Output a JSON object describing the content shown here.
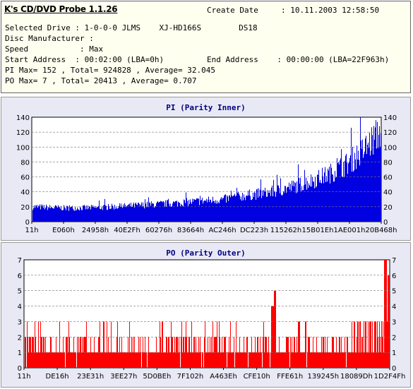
{
  "header": {
    "title": "K's CD/DVD Probe 1.1.26",
    "create_date_label": "Create Date",
    "create_date_value": ": 10.11.2003 12:58:50",
    "drive_line": "Selected Drive : 1-0-0-0 JLMS    XJ-HD166S        DS18",
    "manufacturer_line": "Disc Manufacturer :",
    "speed_line": "Speed           : Max",
    "start_line": "Start Address  : 00:02:00 (LBA=0h)",
    "end_line": "End Address    : 00:00:00 (LBA=22F963h)",
    "pi_line": "PI Max= 152 , Total= 924828 , Average= 32.045",
    "po_line": "PO Max= 7 , Total= 20413 , Average= 0.707"
  },
  "colors": {
    "pi": "#0000e0",
    "po": "#ff0000",
    "panel_bg": "#e9e9f6",
    "title": "#000080"
  },
  "chart_data": [
    {
      "type": "bar",
      "title": "PI (Parity Inner)",
      "ylim": [
        0,
        140
      ],
      "yticks": [
        0,
        20,
        40,
        60,
        80,
        100,
        120,
        140
      ],
      "xtick_labels": [
        "11h",
        "E060h",
        "24958h",
        "40E2Fh",
        "60276h",
        "83664h",
        "AC246h",
        "DC223h",
        "115262h",
        "15B01Eh",
        "1AE001h",
        "20B468h"
      ],
      "grid": true,
      "max": 152,
      "total": 924828,
      "average": 32.045,
      "envelope": [
        [
          0,
          22
        ],
        [
          0.05,
          21
        ],
        [
          0.1,
          20
        ],
        [
          0.2,
          21
        ],
        [
          0.3,
          24
        ],
        [
          0.4,
          27
        ],
        [
          0.5,
          31
        ],
        [
          0.55,
          33
        ],
        [
          0.6,
          38
        ],
        [
          0.65,
          41
        ],
        [
          0.7,
          45
        ],
        [
          0.75,
          52
        ],
        [
          0.8,
          60
        ],
        [
          0.85,
          70
        ],
        [
          0.9,
          84
        ],
        [
          0.95,
          105
        ],
        [
          0.98,
          122
        ],
        [
          1.0,
          135
        ]
      ]
    },
    {
      "type": "bar",
      "title": "PO (Parity Outer)",
      "ylim": [
        0,
        7
      ],
      "yticks": [
        0,
        1,
        2,
        3,
        4,
        5,
        6,
        7
      ],
      "xtick_labels": [
        "11h",
        "DE16h",
        "23E31h",
        "3EE27h",
        "5D0BEh",
        "7F102h",
        "A463Eh",
        "CFE10h",
        "FFE61h",
        "139245h",
        "18089Dh",
        "1D2F4Fh"
      ],
      "grid": true,
      "max": 7,
      "total": 20413,
      "average": 0.707,
      "spikes": [
        [
          0.685,
          5
        ],
        [
          0.68,
          4
        ],
        [
          0.99,
          7
        ],
        [
          1.0,
          6
        ]
      ]
    }
  ]
}
